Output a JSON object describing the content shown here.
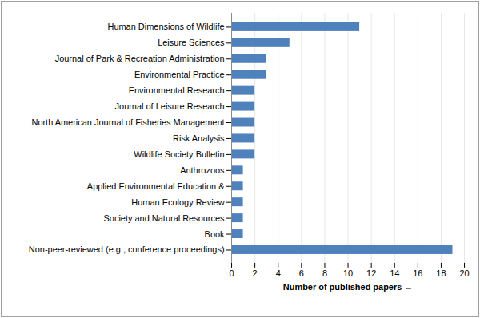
{
  "chart_data": {
    "type": "bar",
    "orientation": "horizontal",
    "categories": [
      "Human Dimensions of Wildlife",
      "Leisure Sciences",
      "Journal of Park & Recreation Administration",
      "Environmental Practice",
      "Environmental Research",
      "Journal of Leisure Research",
      "North American Journal of Fisheries Management",
      "Risk Analysis",
      "Wildlife Society Bulletin",
      "Anthrozoos",
      "Applied Environmental Education &",
      "Human Ecology Review",
      "Society and Natural Resources",
      "Book",
      "Non-peer-reviewed (e.g., conference proceedings)"
    ],
    "values": [
      11,
      5,
      3,
      3,
      2,
      2,
      2,
      2,
      2,
      1,
      1,
      1,
      1,
      1,
      19
    ],
    "color": "#4f81bd",
    "x_label": "Number of published papers",
    "xlim": [
      0,
      20
    ],
    "xticks": [
      0,
      2,
      4,
      6,
      8,
      10,
      12,
      14,
      16,
      18,
      20
    ],
    "grid": true
  }
}
